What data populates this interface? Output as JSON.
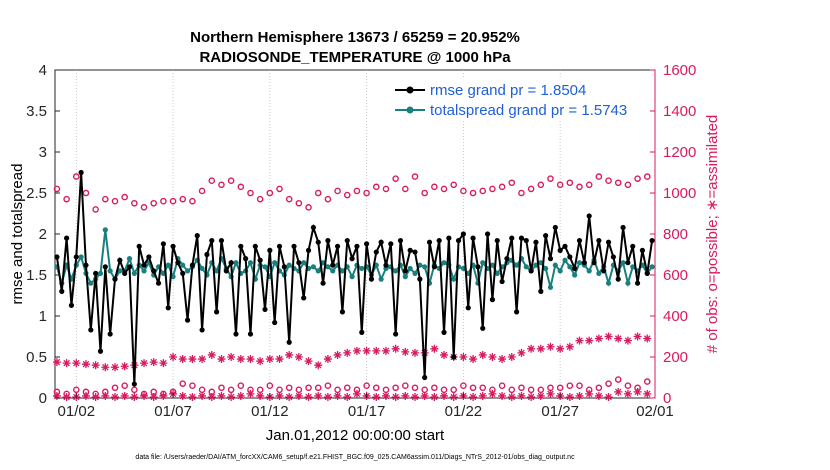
{
  "chart_data": {
    "type": "line",
    "title_line1": "Northern Hemisphere 13673 / 65259 = 20.952%",
    "title_line2": "RADIOSONDE_TEMPERATURE @ 1000 hPa",
    "xlabel": "Jan.01,2012 00:00:00 start",
    "ylabel_left": "rmse and totalspread",
    "ylabel_right": "# of obs: o=possible; ∗=assimilated",
    "footnote": "data file: /Users/raeder/DAI/ATM_forcXX/CAM6_setup/f.e21.FHIST_BGC.f09_025.CAM6assim.011/Diags_NTrS_2012-01/obs_diag_output.nc",
    "xlim": [
      0.4,
      31.4
    ],
    "ylim_left": [
      0,
      4
    ],
    "ylim_right": [
      0,
      1600
    ],
    "x_ticks": [
      1.5,
      6.5,
      11.5,
      16.5,
      21.5,
      26.5,
      31.5
    ],
    "x_tick_labels": [
      "01/02",
      "01/07",
      "01/12",
      "01/17",
      "01/22",
      "01/27",
      "02/01"
    ],
    "y_left_ticks": [
      0,
      0.5,
      1,
      1.5,
      2,
      2.5,
      3,
      3.5,
      4
    ],
    "y_left_tick_labels": [
      "0",
      "0.5",
      "1",
      "1.5",
      "2",
      "2.5",
      "3",
      "3.5",
      "4"
    ],
    "y_right_ticks": [
      0,
      200,
      400,
      600,
      800,
      1000,
      1200,
      1400,
      1600
    ],
    "y_right_tick_labels": [
      "0",
      "200",
      "400",
      "600",
      "800",
      "1000",
      "1200",
      "1400",
      "1600"
    ],
    "x_start": 0.5,
    "x_step": 0.25,
    "series": [
      {
        "name": "rmse grand pr = 1.8504",
        "color": "#000000",
        "values": [
          1.72,
          1.3,
          1.95,
          1.13,
          1.72,
          2.75,
          1.62,
          0.83,
          1.52,
          0.57,
          1.6,
          0.78,
          1.45,
          1.68,
          1.52,
          1.6,
          0.17,
          1.85,
          1.62,
          1.72,
          1.55,
          1.4,
          1.88,
          1.1,
          1.85,
          1.65,
          1.52,
          0.95,
          1.62,
          1.98,
          0.83,
          1.75,
          1.92,
          1.05,
          1.92,
          1.55,
          1.65,
          0.78,
          1.85,
          1.7,
          0.78,
          1.85,
          1.68,
          1.08,
          1.8,
          0.92,
          1.85,
          1.6,
          0.68,
          1.85,
          1.65,
          1.22,
          1.8,
          2.08,
          1.9,
          1.4,
          1.92,
          1.62,
          1.85,
          1.05,
          1.92,
          1.7,
          1.85,
          0.8,
          1.88,
          1.45,
          1.78,
          1.9,
          1.62,
          1.88,
          0.78,
          1.92,
          1.55,
          1.8,
          1.78,
          1.45,
          0.25,
          1.9,
          1.6,
          1.92,
          0.8,
          1.95,
          0.5,
          1.92,
          2.0,
          1.1,
          1.95,
          1.6,
          0.85,
          2.0,
          1.2,
          1.92,
          1.42,
          1.7,
          1.95,
          1.05,
          1.95,
          1.92,
          1.55,
          1.9,
          1.3,
          1.98,
          1.7,
          2.08,
          1.8,
          1.85,
          1.72,
          1.58,
          1.92,
          1.65,
          2.22,
          1.65,
          1.92,
          1.55,
          1.9,
          1.72,
          1.45,
          2.08,
          1.65,
          1.85,
          1.4,
          1.8,
          1.52,
          1.92,
          1.65,
          1.98,
          1.6,
          2.08,
          1.62,
          1.88,
          1.72
        ]
      },
      {
        "name": "totalspread grand pr = 1.5743",
        "color": "#1a7f7f",
        "values": [
          1.6,
          1.4,
          1.62,
          1.45,
          1.62,
          1.72,
          1.52,
          1.4,
          1.45,
          1.52,
          2.05,
          1.55,
          1.45,
          1.55,
          1.55,
          1.7,
          1.52,
          1.62,
          1.55,
          1.65,
          1.5,
          1.6,
          1.52,
          1.62,
          1.48,
          1.7,
          1.62,
          1.55,
          1.6,
          1.68,
          1.58,
          1.5,
          1.65,
          1.55,
          1.7,
          1.58,
          1.48,
          1.65,
          1.52,
          1.55,
          1.65,
          1.45,
          1.62,
          1.6,
          1.48,
          1.65,
          1.55,
          1.5,
          1.62,
          1.58,
          1.55,
          1.65,
          1.58,
          1.6,
          1.55,
          1.65,
          1.6,
          1.55,
          1.62,
          1.55,
          1.6,
          1.48,
          1.62,
          1.58,
          1.6,
          1.5,
          1.62,
          1.45,
          1.58,
          1.6,
          1.55,
          1.62,
          1.48,
          1.58,
          1.52,
          1.62,
          1.6,
          1.4,
          1.62,
          1.58,
          1.65,
          1.62,
          1.45,
          1.6,
          1.58,
          1.52,
          1.62,
          1.4,
          1.65,
          1.58,
          1.62,
          1.52,
          1.6,
          1.65,
          1.68,
          1.62,
          1.7,
          1.6,
          1.55,
          1.62,
          1.65,
          1.58,
          1.35,
          1.62,
          1.55,
          1.68,
          1.6,
          1.5,
          1.65,
          1.62,
          1.55,
          1.68,
          1.52,
          1.6,
          1.4,
          1.62,
          1.55,
          1.65,
          1.4,
          1.6,
          1.55,
          1.62,
          1.52,
          1.6,
          1.58,
          1.62,
          1.4,
          1.6,
          1.35
        ]
      }
    ],
    "obs_possible": {
      "color": "#d81b60",
      "start": 0.5,
      "step": 0.5,
      "values": [
        1020,
        970,
        1080,
        1000,
        920,
        970,
        960,
        980,
        950,
        930,
        950,
        960,
        960,
        970,
        960,
        1010,
        1060,
        1040,
        1060,
        1030,
        1000,
        970,
        1000,
        1020,
        970,
        950,
        930,
        1000,
        970,
        1010,
        990,
        1010,
        1000,
        1030,
        1020,
        1070,
        1020,
        1080,
        1000,
        1030,
        1020,
        1040,
        1010,
        1000,
        1010,
        1020,
        1030,
        1050,
        1000,
        1020,
        1040,
        1070,
        1040,
        1050,
        1030,
        1040,
        1080,
        1060,
        1050,
        1040,
        1070,
        1080,
        1060
      ],
      "low_values": [
        30,
        20,
        40,
        30,
        20,
        30,
        50,
        60,
        40,
        20,
        30,
        20,
        30,
        70,
        60,
        40,
        30,
        50,
        40,
        60,
        40,
        40,
        60,
        40,
        50,
        40,
        50,
        50,
        60,
        40,
        50,
        40,
        60,
        50,
        40,
        50,
        60,
        50,
        40,
        50,
        40,
        40,
        60,
        50,
        50,
        40,
        60,
        40,
        50,
        40,
        40,
        50,
        50,
        60,
        60,
        40,
        50,
        70,
        90,
        60,
        50,
        80,
        70
      ]
    },
    "obs_assimilated": {
      "color": "#d81b60",
      "start": 0.5,
      "step": 0.5,
      "values": [
        175,
        170,
        170,
        165,
        160,
        150,
        150,
        155,
        160,
        170,
        175,
        170,
        200,
        190,
        190,
        190,
        210,
        190,
        200,
        190,
        190,
        180,
        190,
        190,
        210,
        200,
        180,
        160,
        190,
        210,
        220,
        230,
        230,
        230,
        230,
        240,
        225,
        220,
        220,
        240,
        210,
        200,
        200,
        190,
        210,
        200,
        190,
        200,
        220,
        240,
        240,
        250,
        240,
        250,
        280,
        280,
        290,
        300,
        290,
        280,
        300,
        290,
        280
      ],
      "low_values": [
        10,
        5,
        5,
        10,
        5,
        10,
        5,
        10,
        5,
        10,
        5,
        10,
        20,
        10,
        5,
        10,
        5,
        10,
        5,
        10,
        20,
        10,
        5,
        10,
        5,
        10,
        5,
        10,
        5,
        10,
        5,
        20,
        10,
        5,
        10,
        5,
        10,
        5,
        10,
        5,
        10,
        5,
        10,
        5,
        10,
        20,
        10,
        5,
        10,
        5,
        10,
        20,
        10,
        5,
        10,
        20,
        10,
        5,
        30,
        20,
        30,
        20,
        10
      ]
    }
  }
}
